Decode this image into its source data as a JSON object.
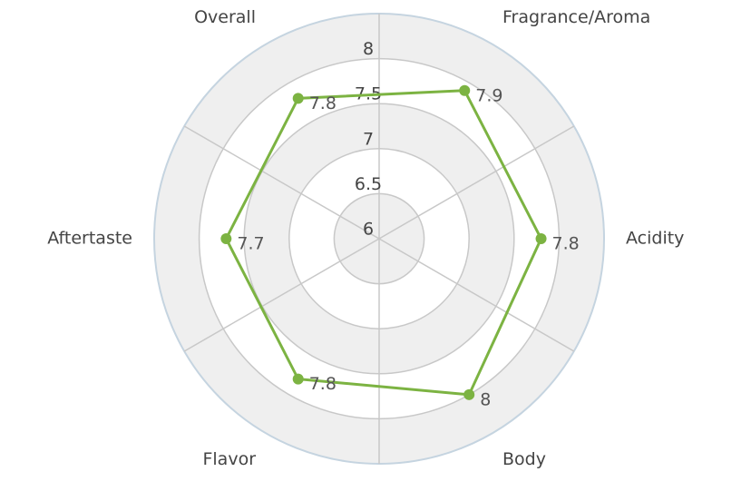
{
  "chart_data": {
    "type": "radar",
    "categories": [
      "Fragrance/Aroma",
      "Acidity",
      "Body",
      "Flavor",
      "Aftertaste",
      "Overall"
    ],
    "values": [
      7.9,
      7.8,
      8,
      7.8,
      7.7,
      7.8
    ],
    "color": "#7cb342",
    "ylim": [
      6,
      8.5
    ],
    "yticks": [
      6,
      6.5,
      7,
      7.5,
      8
    ]
  }
}
